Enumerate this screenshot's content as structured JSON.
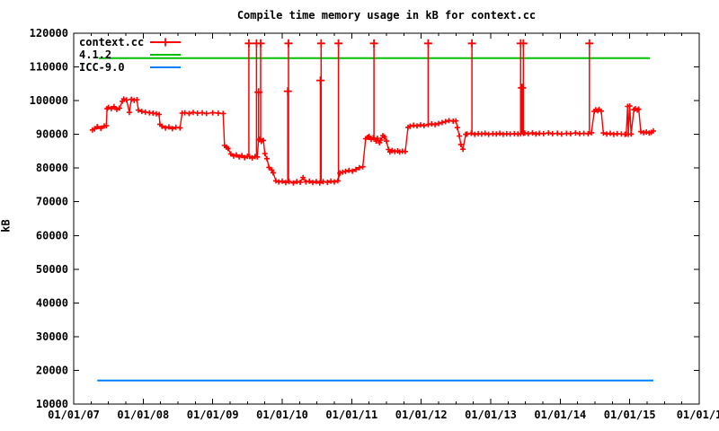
{
  "chart_data": {
    "type": "line",
    "title": "Compile time memory usage in kB for context.cc",
    "xlabel": "",
    "ylabel": "kB",
    "grid": false,
    "legend_position": "top-left",
    "background_color": "#ffffff",
    "axis_color": "#000000",
    "x_axis": {
      "min": 2007,
      "max": 2016,
      "minor_ticks_per_interval": 3,
      "ticks": [
        {
          "year": 2007,
          "label": "01/01/07"
        },
        {
          "year": 2008,
          "label": "01/01/08"
        },
        {
          "year": 2009,
          "label": "01/01/09"
        },
        {
          "year": 2010,
          "label": "01/01/10"
        },
        {
          "year": 2011,
          "label": "01/01/11"
        },
        {
          "year": 2012,
          "label": "01/01/12"
        },
        {
          "year": 2013,
          "label": "01/01/13"
        },
        {
          "year": 2014,
          "label": "01/01/14"
        },
        {
          "year": 2015,
          "label": "01/01/15"
        },
        {
          "year": 2016,
          "label": "01/01/1"
        }
      ]
    },
    "y_axis": {
      "min": 10000,
      "max": 120000,
      "step": 10000,
      "tick_labels": [
        "10000",
        "20000",
        "30000",
        "40000",
        "50000",
        "60000",
        "70000",
        "80000",
        "90000",
        "100000",
        "110000",
        "120000"
      ]
    },
    "series": [
      {
        "name": "context.cc",
        "color": "#ff0000",
        "marker": "+",
        "style": "linespoints",
        "points": [
          [
            2007.27,
            91300
          ],
          [
            2007.3,
            91600
          ],
          [
            2007.34,
            92300
          ],
          [
            2007.39,
            91800
          ],
          [
            2007.44,
            92500
          ],
          [
            2007.47,
            92600
          ],
          [
            2007.48,
            97600
          ],
          [
            2007.5,
            98000
          ],
          [
            2007.54,
            97600
          ],
          [
            2007.58,
            98200
          ],
          [
            2007.62,
            97400
          ],
          [
            2007.66,
            97800
          ],
          [
            2007.7,
            99800
          ],
          [
            2007.72,
            100500
          ],
          [
            2007.76,
            100200
          ],
          [
            2007.8,
            96500
          ],
          [
            2007.83,
            100400
          ],
          [
            2007.87,
            100100
          ],
          [
            2007.91,
            100300
          ],
          [
            2007.93,
            97200
          ],
          [
            2007.98,
            96800
          ],
          [
            2008.03,
            96600
          ],
          [
            2008.09,
            96400
          ],
          [
            2008.14,
            96300
          ],
          [
            2008.19,
            96100
          ],
          [
            2008.23,
            95900
          ],
          [
            2008.24,
            93000
          ],
          [
            2008.27,
            92400
          ],
          [
            2008.32,
            91900
          ],
          [
            2008.37,
            92200
          ],
          [
            2008.42,
            91700
          ],
          [
            2008.47,
            92100
          ],
          [
            2008.53,
            91900
          ],
          [
            2008.56,
            96300
          ],
          [
            2008.6,
            96400
          ],
          [
            2008.66,
            96200
          ],
          [
            2008.72,
            96500
          ],
          [
            2008.78,
            96300
          ],
          [
            2008.85,
            96400
          ],
          [
            2008.91,
            96200
          ],
          [
            2009.0,
            96400
          ],
          [
            2009.08,
            96300
          ],
          [
            2009.15,
            96200
          ],
          [
            2009.17,
            86700
          ],
          [
            2009.2,
            86200
          ],
          [
            2009.22,
            85800
          ],
          [
            2009.26,
            84200
          ],
          [
            2009.3,
            83600
          ],
          [
            2009.34,
            83900
          ],
          [
            2009.38,
            83300
          ],
          [
            2009.42,
            83700
          ],
          [
            2009.46,
            83100
          ],
          [
            2009.5,
            83500
          ],
          [
            2009.53,
            83400
          ],
          [
            2009.57,
            83000
          ],
          [
            2009.61,
            83400
          ],
          [
            2009.64,
            83300
          ],
          [
            2009.66,
            88300
          ],
          [
            2009.68,
            88600
          ],
          [
            2009.7,
            87900
          ],
          [
            2009.73,
            88200
          ],
          [
            2009.75,
            84300
          ],
          [
            2009.78,
            82800
          ],
          [
            2009.81,
            80200
          ],
          [
            2009.85,
            79400
          ],
          [
            2009.87,
            78600
          ],
          [
            2009.91,
            76200
          ],
          [
            2009.95,
            75900
          ],
          [
            2010.0,
            76100
          ],
          [
            2010.05,
            75700
          ],
          [
            2010.1,
            76000
          ],
          [
            2010.16,
            75600
          ],
          [
            2010.21,
            76000
          ],
          [
            2010.26,
            75800
          ],
          [
            2010.3,
            77200
          ],
          [
            2010.34,
            75900
          ],
          [
            2010.39,
            76100
          ],
          [
            2010.44,
            75700
          ],
          [
            2010.49,
            76000
          ],
          [
            2010.54,
            75600
          ],
          [
            2010.59,
            76000
          ],
          [
            2010.65,
            75800
          ],
          [
            2010.7,
            76100
          ],
          [
            2010.75,
            75900
          ],
          [
            2010.8,
            76200
          ],
          [
            2010.83,
            78500
          ],
          [
            2010.87,
            78800
          ],
          [
            2010.91,
            79000
          ],
          [
            2010.96,
            79300
          ],
          [
            2011.01,
            79100
          ],
          [
            2011.06,
            79600
          ],
          [
            2011.11,
            80100
          ],
          [
            2011.16,
            80400
          ],
          [
            2011.2,
            88700
          ],
          [
            2011.23,
            89100
          ],
          [
            2011.25,
            89400
          ],
          [
            2011.28,
            88500
          ],
          [
            2011.31,
            89000
          ],
          [
            2011.35,
            88000
          ],
          [
            2011.37,
            88800
          ],
          [
            2011.4,
            87500
          ],
          [
            2011.42,
            88300
          ],
          [
            2011.45,
            89600
          ],
          [
            2011.47,
            89200
          ],
          [
            2011.5,
            88000
          ],
          [
            2011.53,
            85500
          ],
          [
            2011.55,
            84800
          ],
          [
            2011.58,
            85200
          ],
          [
            2011.62,
            84900
          ],
          [
            2011.66,
            85100
          ],
          [
            2011.69,
            84800
          ],
          [
            2011.73,
            85000
          ],
          [
            2011.77,
            84900
          ],
          [
            2011.81,
            92100
          ],
          [
            2011.84,
            92400
          ],
          [
            2011.89,
            92700
          ],
          [
            2011.94,
            92500
          ],
          [
            2011.99,
            92800
          ],
          [
            2012.04,
            92600
          ],
          [
            2012.1,
            92900
          ],
          [
            2012.15,
            93100
          ],
          [
            2012.2,
            92900
          ],
          [
            2012.25,
            93200
          ],
          [
            2012.3,
            93500
          ],
          [
            2012.35,
            93800
          ],
          [
            2012.4,
            94100
          ],
          [
            2012.46,
            93900
          ],
          [
            2012.5,
            94000
          ],
          [
            2012.52,
            92000
          ],
          [
            2012.55,
            89500
          ],
          [
            2012.57,
            87000
          ],
          [
            2012.6,
            85600
          ],
          [
            2012.64,
            90000
          ],
          [
            2012.66,
            90100
          ],
          [
            2012.72,
            90300
          ],
          [
            2012.77,
            90000
          ],
          [
            2012.82,
            90200
          ],
          [
            2012.87,
            90100
          ],
          [
            2012.92,
            90300
          ],
          [
            2012.97,
            90000
          ],
          [
            2013.03,
            90200
          ],
          [
            2013.08,
            90100
          ],
          [
            2013.13,
            90300
          ],
          [
            2013.18,
            90000
          ],
          [
            2013.23,
            90200
          ],
          [
            2013.28,
            90100
          ],
          [
            2013.34,
            90200
          ],
          [
            2013.39,
            90100
          ],
          [
            2013.43,
            90200
          ],
          [
            2013.47,
            90300
          ],
          [
            2013.49,
            90400
          ],
          [
            2013.54,
            90200
          ],
          [
            2013.6,
            90400
          ],
          [
            2013.65,
            90100
          ],
          [
            2013.7,
            90300
          ],
          [
            2013.76,
            90200
          ],
          [
            2013.83,
            90400
          ],
          [
            2013.89,
            90200
          ],
          [
            2013.96,
            90300
          ],
          [
            2014.02,
            90100
          ],
          [
            2014.09,
            90300
          ],
          [
            2014.15,
            90200
          ],
          [
            2014.22,
            90400
          ],
          [
            2014.28,
            90200
          ],
          [
            2014.34,
            90300
          ],
          [
            2014.4,
            90200
          ],
          [
            2014.45,
            90500
          ],
          [
            2014.49,
            96800
          ],
          [
            2014.51,
            97300
          ],
          [
            2014.54,
            97000
          ],
          [
            2014.56,
            97400
          ],
          [
            2014.59,
            96900
          ],
          [
            2014.62,
            90400
          ],
          [
            2014.67,
            90100
          ],
          [
            2014.72,
            90300
          ],
          [
            2014.77,
            90000
          ],
          [
            2014.82,
            90200
          ],
          [
            2014.88,
            90100
          ],
          [
            2014.93,
            90000
          ],
          [
            2014.95,
            90100
          ],
          [
            2014.97,
            98300
          ],
          [
            2014.98,
            90000
          ],
          [
            2015.0,
            98400
          ],
          [
            2015.02,
            90100
          ],
          [
            2015.06,
            97300
          ],
          [
            2015.08,
            97600
          ],
          [
            2015.11,
            97200
          ],
          [
            2015.13,
            97500
          ],
          [
            2015.16,
            90800
          ],
          [
            2015.2,
            90500
          ],
          [
            2015.24,
            90700
          ],
          [
            2015.28,
            90400
          ],
          [
            2015.31,
            90600
          ],
          [
            2015.34,
            91000
          ]
        ],
        "spikes": [
          [
            2009.52,
            117000,
            83500
          ],
          [
            2009.63,
            117000,
            83400
          ],
          [
            2009.66,
            102500,
            88300
          ],
          [
            2009.69,
            117000,
            87900
          ],
          [
            2010.08,
            102800,
            76000
          ],
          [
            2010.09,
            117000,
            76000
          ],
          [
            2010.55,
            106000,
            75700
          ],
          [
            2010.56,
            117000,
            75700
          ],
          [
            2010.81,
            117000,
            76200
          ],
          [
            2011.32,
            117000,
            88700
          ],
          [
            2012.1,
            117000,
            92900
          ],
          [
            2012.73,
            117000,
            90300
          ],
          [
            2013.43,
            117000,
            90200
          ],
          [
            2013.45,
            103800,
            90200
          ],
          [
            2013.47,
            117000,
            90300
          ],
          [
            2014.42,
            117000,
            90200
          ]
        ]
      },
      {
        "name": "4.1.2",
        "color": "#00c000",
        "marker": "none",
        "style": "constant-line",
        "value": 112600,
        "x_start": 2007.36,
        "x_end": 2015.29
      },
      {
        "name": "ICC-9.0",
        "color": "#0080ff",
        "marker": "none",
        "style": "constant-line",
        "value": 17000,
        "x_start": 2007.34,
        "x_end": 2015.34
      }
    ]
  }
}
